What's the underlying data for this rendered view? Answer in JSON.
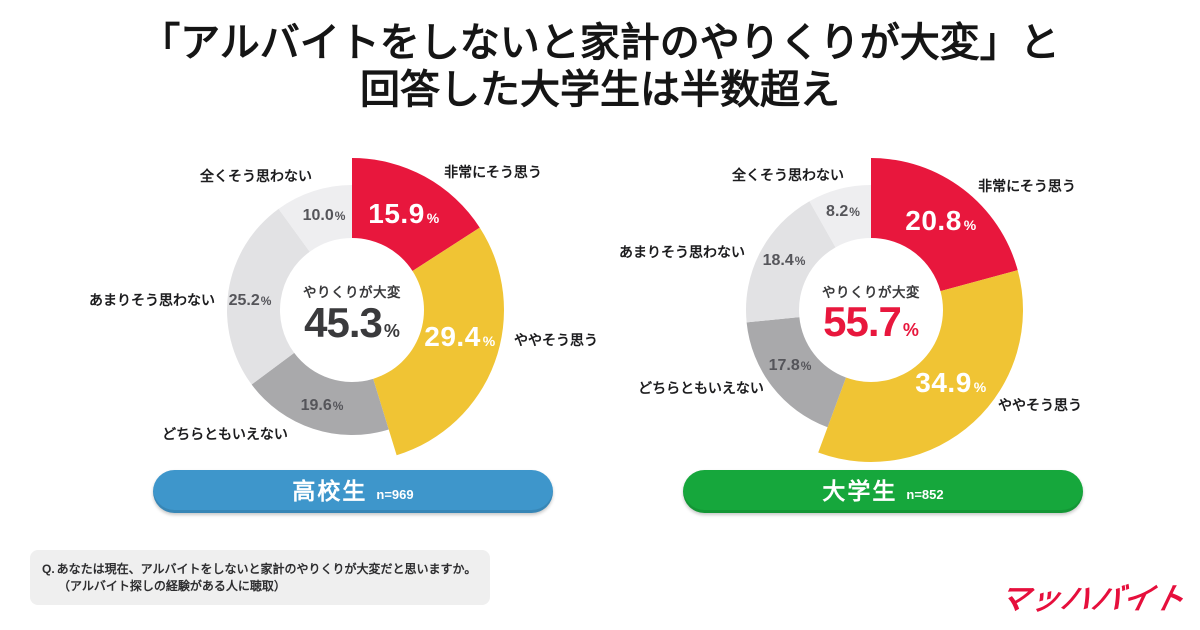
{
  "title": {
    "line1": "「アルバイトをしないと家計のやりくりが大変」と",
    "line2": "回答した大学生は半数超え"
  },
  "chart_data": [
    {
      "type": "pie",
      "group_label": "高校生",
      "sample_label": "n=969",
      "badge_color": "#3e96cb",
      "center_label": "やりくりが大変",
      "center_value": 45.3,
      "center_value_text": "45.3",
      "center_value_color": "#3a3a3c",
      "unit": "%",
      "legend_position": "around",
      "slices": [
        {
          "label": "非常にそう思う",
          "value": 15.9,
          "value_text": "15.9",
          "color": "#e8173d",
          "emphasized": true
        },
        {
          "label": "ややそう思う",
          "value": 29.4,
          "value_text": "29.4",
          "color": "#f0c434",
          "emphasized": true
        },
        {
          "label": "どちらともいえない",
          "value": 19.6,
          "value_text": "19.6",
          "color": "#a9a9ab",
          "emphasized": false
        },
        {
          "label": "あまりそう思わない",
          "value": 25.2,
          "value_text": "25.2",
          "color": "#e2e2e4",
          "emphasized": false
        },
        {
          "label": "全くそう思わない",
          "value": 10.0,
          "value_text": "10.0",
          "color": "#eeeef0",
          "emphasized": false
        }
      ]
    },
    {
      "type": "pie",
      "group_label": "大学生",
      "sample_label": "n=852",
      "badge_color": "#16a73c",
      "center_label": "やりくりが大変",
      "center_value": 55.7,
      "center_value_text": "55.7",
      "center_value_color": "#e8173d",
      "unit": "%",
      "legend_position": "around",
      "slices": [
        {
          "label": "非常にそう思う",
          "value": 20.8,
          "value_text": "20.8",
          "color": "#e8173d",
          "emphasized": true
        },
        {
          "label": "ややそう思う",
          "value": 34.9,
          "value_text": "34.9",
          "color": "#f0c434",
          "emphasized": true
        },
        {
          "label": "どちらともいえない",
          "value": 17.8,
          "value_text": "17.8",
          "color": "#a9a9ab",
          "emphasized": false
        },
        {
          "label": "あまりそう思わない",
          "value": 18.4,
          "value_text": "18.4",
          "color": "#e2e2e4",
          "emphasized": false
        },
        {
          "label": "全くそう思わない",
          "value": 8.2,
          "value_text": "8.2",
          "color": "#eeeef0",
          "emphasized": false
        }
      ]
    }
  ],
  "footnote": {
    "q_prefix": "Q.",
    "question": "あなたは現在、アルバイトをしないと家計のやりくりが大変だと思いますか。",
    "note": "（アルバイト探しの経験がある人に聴取）"
  },
  "logo": {
    "text": "マッハバイト",
    "color": "#e60f3c"
  }
}
